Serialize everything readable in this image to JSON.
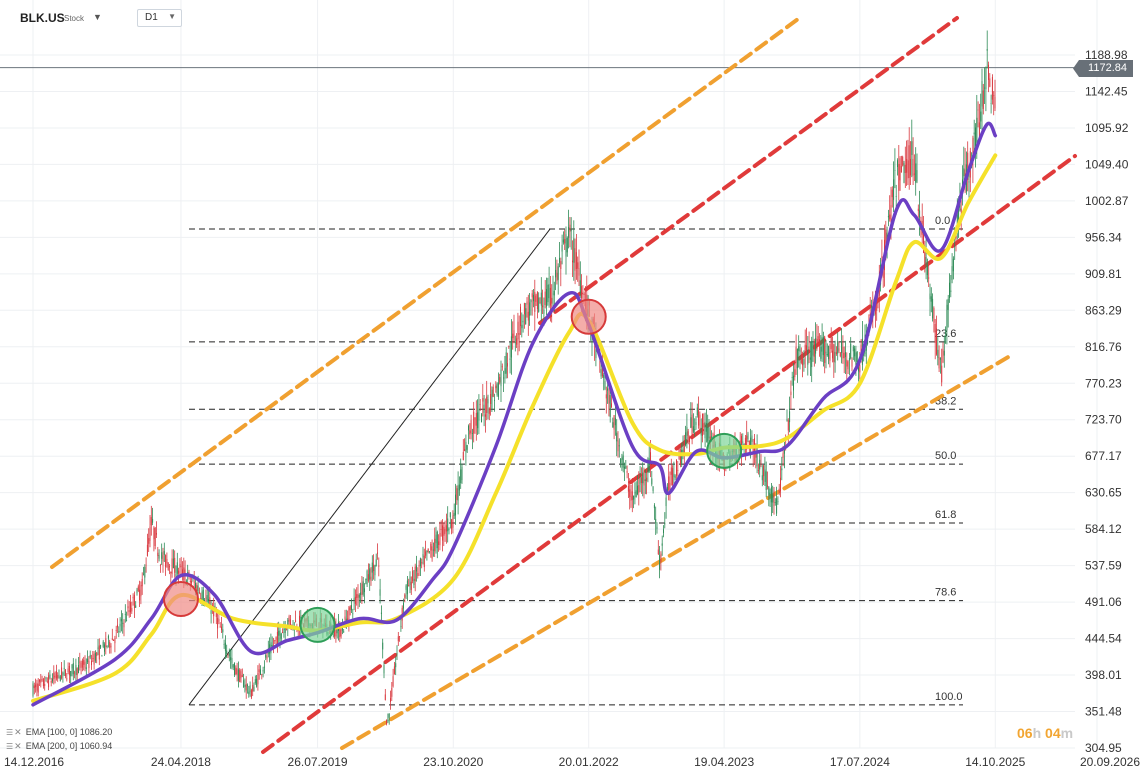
{
  "header": {
    "symbol": "BLK.US",
    "symbol_type": "Stock",
    "timeframe": "D1"
  },
  "indicators": [
    {
      "label": "EMA [100, 0]",
      "value": "1086.20",
      "color": "#6b3fc4"
    },
    {
      "label": "EMA [200, 0]",
      "value": "1060.94",
      "color": "#f5e12a"
    }
  ],
  "last_price": "1172.84",
  "countdown": {
    "hours": "06",
    "hours_unit": "h",
    "minutes": "04",
    "minutes_unit": "m"
  },
  "colors": {
    "candle_up": "#2e8b57",
    "candle_down": "#d9383f",
    "ema100": "#6b3fc4",
    "ema200": "#f5e12a",
    "channel_outer": "#f0a030",
    "channel_inner": "#e03a3a",
    "signal_sell": "#f08a85",
    "signal_buy": "#7fd69a"
  },
  "chart_data": {
    "type": "candlestick",
    "y_axis_ticks": [
      "1188.98",
      "1142.45",
      "1095.92",
      "1049.40",
      "1002.87",
      "956.34",
      "909.81",
      "863.29",
      "816.76",
      "770.23",
      "723.70",
      "677.17",
      "630.65",
      "584.12",
      "537.59",
      "491.06",
      "444.54",
      "398.01",
      "351.48",
      "304.95"
    ],
    "x_axis_ticks": [
      "14.12.2016",
      "24.04.2018",
      "26.07.2019",
      "23.10.2020",
      "20.01.2022",
      "19.04.2023",
      "17.07.2024",
      "14.10.2025",
      "20.09.2026"
    ],
    "ylim": [
      304.95,
      1210
    ],
    "fibonacci": {
      "levels": [
        {
          "label": "0.0",
          "price": 967
        },
        {
          "label": "23.6",
          "price": 823
        },
        {
          "label": "38.2",
          "price": 737
        },
        {
          "label": "50.0",
          "price": 667
        },
        {
          "label": "61.8",
          "price": 592
        },
        {
          "label": "78.6",
          "price": 493
        },
        {
          "label": "100.0",
          "price": 360
        }
      ]
    },
    "price_path": [
      [
        "14.12.2016",
        380
      ],
      [
        "2017-03",
        398
      ],
      [
        "2017-06",
        412
      ],
      [
        "2017-09",
        447
      ],
      [
        "2017-12",
        510
      ],
      [
        "2018-01",
        592
      ],
      [
        "2018-02",
        548
      ],
      [
        "24.04.2018",
        530
      ],
      [
        "2018-06",
        512
      ],
      [
        "2018-08",
        478
      ],
      [
        "2018-10",
        410
      ],
      [
        "2018-12",
        375
      ],
      [
        "2019-02",
        428
      ],
      [
        "2019-04",
        465
      ],
      [
        "26.07.2019",
        462
      ],
      [
        "2019-10",
        455
      ],
      [
        "2019-12",
        505
      ],
      [
        "2020-02",
        545
      ],
      [
        "2020-03",
        330
      ],
      [
        "2020-05",
        505
      ],
      [
        "2020-08",
        560
      ],
      [
        "23.10.2020",
        600
      ],
      [
        "2020-12",
        710
      ],
      [
        "2021-03",
        760
      ],
      [
        "2021-06",
        860
      ],
      [
        "2021-09",
        880
      ],
      [
        "2021-11",
        960
      ],
      [
        "20.01.2022",
        860
      ],
      [
        "2022-03",
        770
      ],
      [
        "2022-06",
        620
      ],
      [
        "2022-08",
        670
      ],
      [
        "2022-09",
        540
      ],
      [
        "2022-10",
        640
      ],
      [
        "2023-01",
        730
      ],
      [
        "19.04.2023",
        670
      ],
      [
        "2023-07",
        700
      ],
      [
        "2023-10",
        610
      ],
      [
        "2023-12",
        800
      ],
      [
        "2024-03",
        815
      ],
      [
        "17.07.2024",
        800
      ],
      [
        "2024-09",
        880
      ],
      [
        "2024-11",
        1030
      ],
      [
        "2025-01",
        1060
      ],
      [
        "2025-02",
        950
      ],
      [
        "2025-04",
        780
      ],
      [
        "2025-06",
        1000
      ],
      [
        "2025-08",
        1090
      ],
      [
        "2025-09",
        1175
      ],
      [
        "2025-10",
        1120
      ],
      [
        "14.10.2025",
        1172.84
      ]
    ],
    "ema100_path": [
      [
        "14.12.2016",
        360
      ],
      [
        "2017-09",
        418
      ],
      [
        "2018-01",
        470
      ],
      [
        "24.04.2018",
        525
      ],
      [
        "2018-08",
        500
      ],
      [
        "2018-12",
        428
      ],
      [
        "2019-04",
        442
      ],
      [
        "26.07.2019",
        452
      ],
      [
        "2019-12",
        470
      ],
      [
        "2020-04",
        468
      ],
      [
        "2020-08",
        520
      ],
      [
        "23.10.2020",
        560
      ],
      [
        "2021-03",
        690
      ],
      [
        "2021-07",
        820
      ],
      [
        "2021-11",
        885
      ],
      [
        "20.01.2022",
        845
      ],
      [
        "2022-06",
        690
      ],
      [
        "2022-09",
        665
      ],
      [
        "2022-10",
        630
      ],
      [
        "2023-01",
        683
      ],
      [
        "19.04.2023",
        675
      ],
      [
        "2023-08",
        683
      ],
      [
        "2023-11",
        690
      ],
      [
        "2024-03",
        750
      ],
      [
        "17.07.2024",
        800
      ],
      [
        "2024-11",
        990
      ],
      [
        "2025-01",
        985
      ],
      [
        "2025-04",
        940
      ],
      [
        "2025-07",
        1040
      ],
      [
        "2025-09",
        1100
      ],
      [
        "14.10.2025",
        1086.2
      ]
    ],
    "ema200_path": [
      [
        "14.12.2016",
        365
      ],
      [
        "2017-09",
        400
      ],
      [
        "2018-01",
        450
      ],
      [
        "24.04.2018",
        500
      ],
      [
        "2018-10",
        470
      ],
      [
        "2019-04",
        460
      ],
      [
        "26.07.2019",
        455
      ],
      [
        "2019-12",
        465
      ],
      [
        "2020-04",
        470
      ],
      [
        "23.10.2020",
        520
      ],
      [
        "2021-03",
        630
      ],
      [
        "2021-07",
        740
      ],
      [
        "2021-11",
        835
      ],
      [
        "20.01.2022",
        850
      ],
      [
        "2022-06",
        720
      ],
      [
        "2022-09",
        685
      ],
      [
        "2023-01",
        680
      ],
      [
        "19.04.2023",
        688
      ],
      [
        "2023-08",
        690
      ],
      [
        "2023-11",
        700
      ],
      [
        "2024-03",
        735
      ],
      [
        "17.07.2024",
        770
      ],
      [
        "2024-11",
        900
      ],
      [
        "2025-01",
        950
      ],
      [
        "2025-04",
        930
      ],
      [
        "2025-07",
        1000
      ],
      [
        "14.10.2025",
        1060.94
      ]
    ],
    "signals": [
      {
        "type": "sell",
        "date": "24.04.2018",
        "price": 495
      },
      {
        "type": "buy",
        "date": "26.07.2019",
        "price": 462
      },
      {
        "type": "sell",
        "date": "20.01.2022",
        "price": 855
      },
      {
        "type": "buy",
        "date": "19.04.2023",
        "price": 684
      }
    ]
  }
}
